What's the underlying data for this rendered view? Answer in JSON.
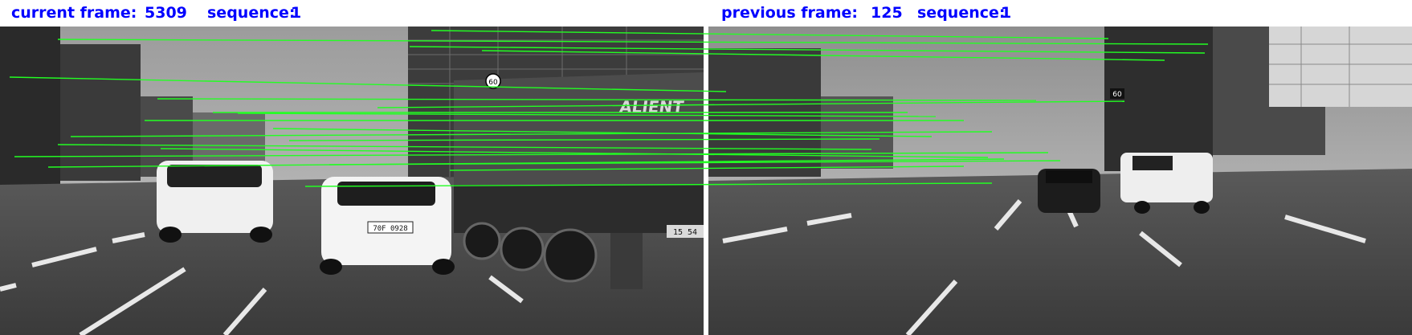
{
  "left_header": {
    "frame_label": "current frame:",
    "frame_value": "5309",
    "sequence_label": "sequence:",
    "sequence_value": "1"
  },
  "right_header": {
    "frame_label": "previous frame:",
    "frame_value": "125",
    "sequence_label": "sequence:",
    "sequence_value": "1"
  },
  "colors": {
    "header_text": "#0000ff",
    "match_line": "#22ff22",
    "background": "#ffffff"
  },
  "left_scene": {
    "sign_speed": "60",
    "truck_text": "ALIENT",
    "plate_1": "15 54",
    "plate_2": "70F 0928"
  },
  "right_scene": {
    "sign_speed": "60"
  }
}
